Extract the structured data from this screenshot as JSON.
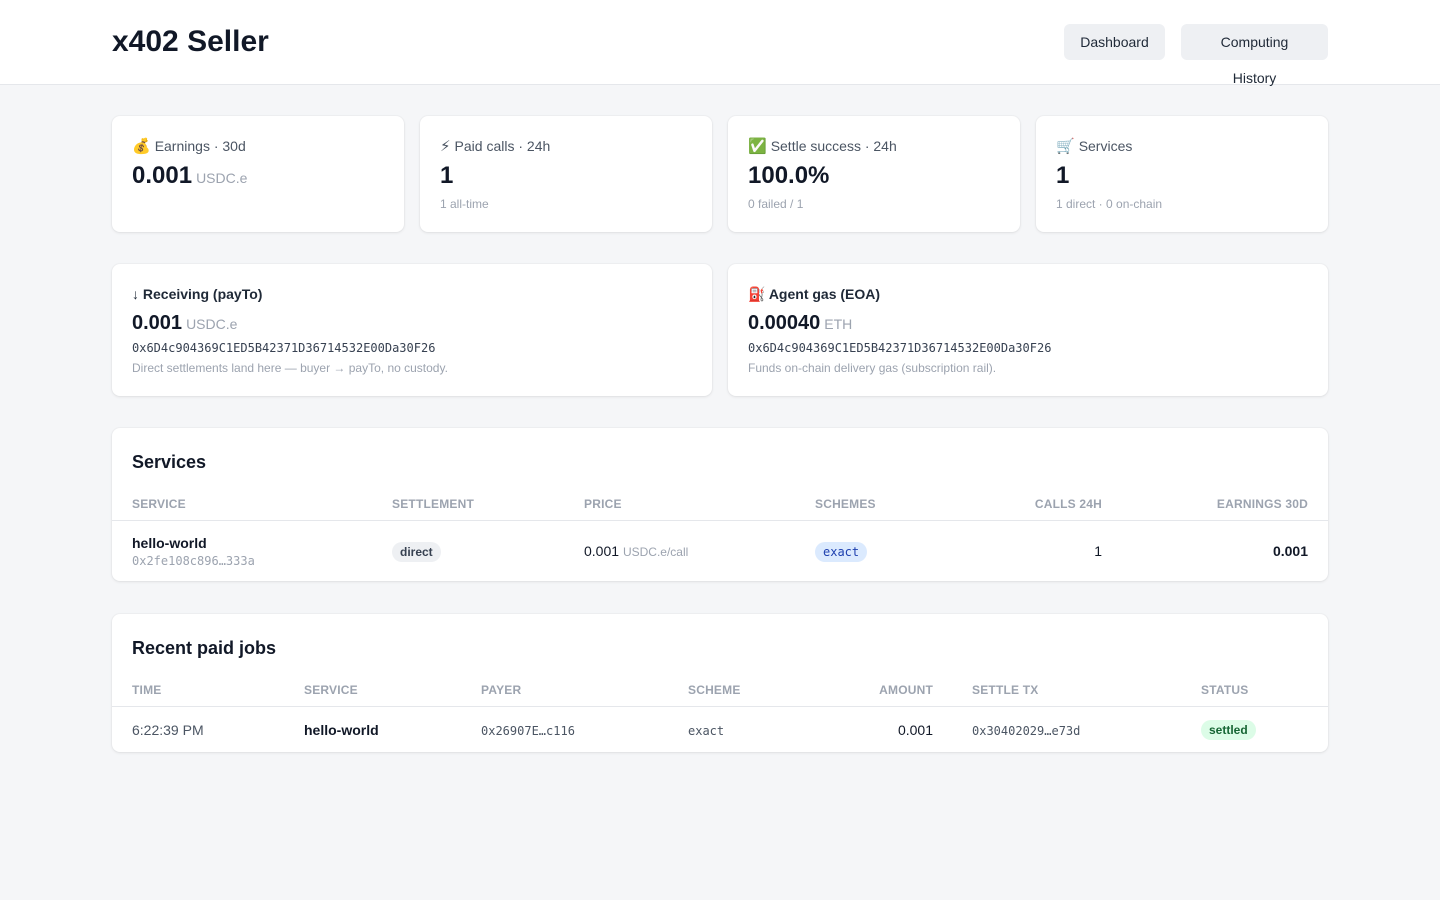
{
  "header": {
    "title": "x402 Seller",
    "nav": {
      "dashboard": "Dashboard",
      "history": "Computing History"
    }
  },
  "stats": [
    {
      "icon": "money-bag-icon",
      "emoji": "💰",
      "label": "Earnings · 30d",
      "value": "0.001",
      "unit": "USDC.e",
      "sub": ""
    },
    {
      "icon": "lightning-icon",
      "emoji": "⚡",
      "label": "Paid calls · 24h",
      "value": "1",
      "unit": "",
      "sub": "1 all-time"
    },
    {
      "icon": "check-mark-icon",
      "emoji": "✅",
      "label": "Settle success · 24h",
      "value": "100.0%",
      "unit": "",
      "sub": "0 failed / 1"
    },
    {
      "icon": "shopping-cart-icon",
      "emoji": "🛒",
      "label": "Services",
      "value": "1",
      "unit": "",
      "sub": "1 direct · 0 on-chain"
    }
  ],
  "wallets": {
    "receiving": {
      "icon": "down-arrow-icon",
      "emoji": "↓",
      "label": "Receiving (payTo)",
      "value": "0.001",
      "unit": "USDC.e",
      "address": "0x6D4c904369C1ED5B42371D36714532E00Da30F26",
      "note": "Direct settlements land here — buyer → payTo, no custody."
    },
    "gas": {
      "icon": "fuel-pump-icon",
      "emoji": "⛽",
      "label": "Agent gas (EOA)",
      "value": "0.00040",
      "unit": "ETH",
      "address": "0x6D4c904369C1ED5B42371D36714532E00Da30F26",
      "note": "Funds on-chain delivery gas (subscription rail)."
    }
  },
  "services": {
    "title": "Services",
    "columns": [
      "SERVICE",
      "SETTLEMENT",
      "PRICE",
      "SCHEMES",
      "CALLS 24H",
      "EARNINGS 30D"
    ],
    "rows": [
      {
        "name": "hello-world",
        "id": "0x2fe108c896…333a",
        "settlement": "direct",
        "price": "0.001",
        "price_unit": "USDC.e/call",
        "scheme": "exact",
        "calls_24h": "1",
        "earnings_30d": "0.001"
      }
    ]
  },
  "jobs": {
    "title": "Recent paid jobs",
    "columns": [
      "TIME",
      "SERVICE",
      "PAYER",
      "SCHEME",
      "AMOUNT",
      "SETTLE TX",
      "STATUS"
    ],
    "rows": [
      {
        "time": "6:22:39 PM",
        "service": "hello-world",
        "payer": "0x26907E…c116",
        "scheme": "exact",
        "amount": "0.001",
        "settle_tx": "0x30402029…e73d",
        "status": "settled"
      }
    ]
  },
  "colors": {
    "background": "#f5f6f8",
    "card": "#ffffff",
    "muted_text": "#9ca3af",
    "exact_badge_bg": "#dbeafe",
    "settled_badge_bg": "#dcfce7",
    "settled_badge_text": "#166534"
  }
}
